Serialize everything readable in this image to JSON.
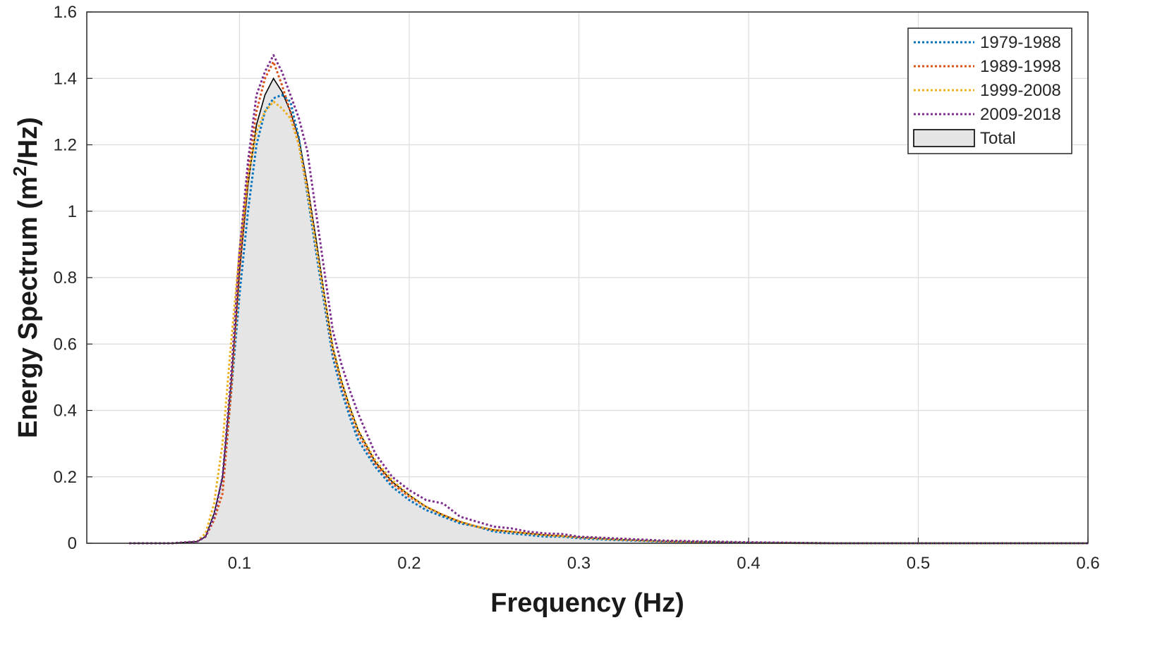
{
  "chart_data": {
    "type": "area",
    "title": "",
    "xlabel": "Frequency (Hz)",
    "ylabel_parts": [
      "Energy Spectrum (m",
      "2",
      "/Hz)"
    ],
    "xlim": [
      0.01,
      0.6
    ],
    "ylim": [
      0,
      1.6
    ],
    "grid": true,
    "legend_position": "top-right",
    "x_ticks": [
      {
        "value": 0.1,
        "label": "0.1"
      },
      {
        "value": 0.2,
        "label": "0.2"
      },
      {
        "value": 0.3,
        "label": "0.3"
      },
      {
        "value": 0.4,
        "label": "0.4"
      },
      {
        "value": 0.5,
        "label": "0.5"
      },
      {
        "value": 0.6,
        "label": "0.6"
      }
    ],
    "y_ticks": [
      {
        "value": 0,
        "label": "0"
      },
      {
        "value": 0.2,
        "label": "0.2"
      },
      {
        "value": 0.4,
        "label": "0.4"
      },
      {
        "value": 0.6,
        "label": "0.6"
      },
      {
        "value": 0.8,
        "label": "0.8"
      },
      {
        "value": 1.0,
        "label": "1"
      },
      {
        "value": 1.2,
        "label": "1.2"
      },
      {
        "value": 1.4,
        "label": "1.4"
      },
      {
        "value": 1.6,
        "label": "1.6"
      }
    ],
    "series": [
      {
        "name": "1979-1988",
        "style": "dotted",
        "color": "#0072BD",
        "x": [
          0.035,
          0.06,
          0.075,
          0.08,
          0.085,
          0.09,
          0.095,
          0.1,
          0.105,
          0.11,
          0.115,
          0.12,
          0.125,
          0.13,
          0.135,
          0.14,
          0.145,
          0.15,
          0.155,
          0.16,
          0.165,
          0.17,
          0.18,
          0.19,
          0.2,
          0.21,
          0.22,
          0.23,
          0.24,
          0.25,
          0.26,
          0.27,
          0.28,
          0.29,
          0.3,
          0.32,
          0.35,
          0.4,
          0.45,
          0.5,
          0.55,
          0.6
        ],
        "y": [
          0,
          0,
          0.005,
          0.02,
          0.08,
          0.2,
          0.45,
          0.75,
          1.0,
          1.2,
          1.3,
          1.34,
          1.35,
          1.33,
          1.22,
          1.05,
          0.88,
          0.72,
          0.56,
          0.46,
          0.38,
          0.31,
          0.23,
          0.17,
          0.13,
          0.1,
          0.08,
          0.06,
          0.05,
          0.035,
          0.03,
          0.025,
          0.02,
          0.02,
          0.015,
          0.01,
          0.005,
          0.002,
          0,
          0,
          0,
          0
        ]
      },
      {
        "name": "1989-1998",
        "style": "dotted",
        "color": "#D95319",
        "x": [
          0.035,
          0.06,
          0.075,
          0.08,
          0.085,
          0.09,
          0.095,
          0.1,
          0.105,
          0.11,
          0.115,
          0.12,
          0.125,
          0.13,
          0.135,
          0.14,
          0.145,
          0.15,
          0.155,
          0.16,
          0.165,
          0.17,
          0.18,
          0.19,
          0.2,
          0.21,
          0.22,
          0.23,
          0.24,
          0.25,
          0.26,
          0.27,
          0.28,
          0.29,
          0.3,
          0.32,
          0.35,
          0.4,
          0.45,
          0.5,
          0.55,
          0.6
        ],
        "y": [
          0,
          0,
          0.005,
          0.02,
          0.07,
          0.15,
          0.45,
          0.82,
          1.12,
          1.3,
          1.4,
          1.45,
          1.38,
          1.3,
          1.2,
          1.07,
          0.9,
          0.74,
          0.58,
          0.48,
          0.4,
          0.33,
          0.24,
          0.18,
          0.14,
          0.11,
          0.085,
          0.065,
          0.05,
          0.04,
          0.035,
          0.03,
          0.025,
          0.022,
          0.018,
          0.012,
          0.006,
          0.002,
          0,
          0,
          0,
          0
        ]
      },
      {
        "name": "1999-2008",
        "style": "dotted",
        "color": "#EDB120",
        "x": [
          0.035,
          0.06,
          0.075,
          0.08,
          0.085,
          0.09,
          0.095,
          0.1,
          0.105,
          0.11,
          0.115,
          0.12,
          0.125,
          0.13,
          0.135,
          0.14,
          0.145,
          0.15,
          0.155,
          0.16,
          0.165,
          0.17,
          0.18,
          0.19,
          0.2,
          0.21,
          0.22,
          0.23,
          0.24,
          0.25,
          0.26,
          0.27,
          0.28,
          0.29,
          0.3,
          0.32,
          0.35,
          0.4,
          0.45,
          0.5,
          0.55,
          0.6
        ],
        "y": [
          0,
          0,
          0.005,
          0.03,
          0.12,
          0.3,
          0.6,
          0.88,
          1.1,
          1.24,
          1.3,
          1.33,
          1.31,
          1.28,
          1.2,
          1.06,
          0.9,
          0.74,
          0.59,
          0.49,
          0.41,
          0.34,
          0.25,
          0.19,
          0.145,
          0.11,
          0.085,
          0.065,
          0.05,
          0.04,
          0.035,
          0.03,
          0.025,
          0.022,
          0.018,
          0.012,
          0.006,
          0.002,
          0,
          0,
          0,
          0
        ]
      },
      {
        "name": "2009-2018",
        "style": "dotted",
        "color": "#7E2F8E",
        "x": [
          0.035,
          0.06,
          0.075,
          0.08,
          0.085,
          0.09,
          0.095,
          0.1,
          0.105,
          0.11,
          0.115,
          0.12,
          0.125,
          0.13,
          0.135,
          0.14,
          0.145,
          0.15,
          0.155,
          0.16,
          0.165,
          0.17,
          0.18,
          0.19,
          0.2,
          0.21,
          0.22,
          0.23,
          0.24,
          0.25,
          0.26,
          0.27,
          0.28,
          0.29,
          0.3,
          0.32,
          0.35,
          0.4,
          0.45,
          0.5,
          0.55,
          0.6
        ],
        "y": [
          0,
          0,
          0.005,
          0.02,
          0.08,
          0.2,
          0.5,
          0.88,
          1.15,
          1.35,
          1.42,
          1.47,
          1.42,
          1.35,
          1.28,
          1.18,
          1.0,
          0.82,
          0.64,
          0.54,
          0.46,
          0.39,
          0.27,
          0.2,
          0.16,
          0.13,
          0.12,
          0.08,
          0.065,
          0.05,
          0.045,
          0.035,
          0.03,
          0.028,
          0.02,
          0.015,
          0.008,
          0.003,
          0,
          0,
          0,
          0
        ]
      },
      {
        "name": "Total",
        "style": "area",
        "color": "#E5E5E5",
        "edge_color": "#000000",
        "x": [
          0.035,
          0.06,
          0.075,
          0.08,
          0.085,
          0.09,
          0.095,
          0.1,
          0.105,
          0.11,
          0.115,
          0.12,
          0.125,
          0.13,
          0.135,
          0.14,
          0.145,
          0.15,
          0.155,
          0.16,
          0.165,
          0.17,
          0.18,
          0.19,
          0.2,
          0.21,
          0.22,
          0.23,
          0.24,
          0.25,
          0.26,
          0.27,
          0.28,
          0.29,
          0.3,
          0.32,
          0.35,
          0.4,
          0.45,
          0.5,
          0.55,
          0.6
        ],
        "y": [
          0,
          0,
          0.005,
          0.02,
          0.09,
          0.2,
          0.48,
          0.82,
          1.08,
          1.26,
          1.35,
          1.4,
          1.36,
          1.3,
          1.22,
          1.08,
          0.92,
          0.75,
          0.59,
          0.49,
          0.41,
          0.34,
          0.245,
          0.185,
          0.145,
          0.11,
          0.085,
          0.065,
          0.05,
          0.04,
          0.035,
          0.03,
          0.025,
          0.022,
          0.018,
          0.012,
          0.006,
          0.002,
          0,
          0,
          0,
          0
        ]
      }
    ]
  }
}
